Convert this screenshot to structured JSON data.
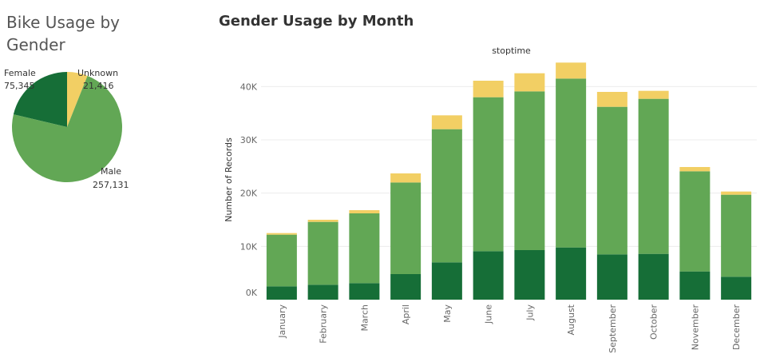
{
  "colors": {
    "female": "#166e37",
    "male": "#62a755",
    "unknown": "#f2cf64",
    "grid": "#ececec",
    "tick_text": "#666666",
    "title_text": "#333333"
  },
  "chart_data": [
    {
      "type": "pie",
      "title": "Bike Usage by Gender",
      "slices": [
        {
          "name": "Female",
          "value": 75345,
          "label": "75,345"
        },
        {
          "name": "Unknown",
          "value": 21416,
          "label": "21,416"
        },
        {
          "name": "Male",
          "value": 257131,
          "label": "257,131"
        }
      ]
    },
    {
      "type": "bar",
      "stacked": true,
      "title": "Gender Usage by Month",
      "column_header": "stoptime",
      "ylabel": "Number of Records",
      "xlabel": "",
      "ylim": [
        0,
        45000
      ],
      "yticks": [
        0,
        10000,
        20000,
        30000,
        40000
      ],
      "ytick_labels": [
        "0K",
        "10K",
        "20K",
        "30K",
        "40K"
      ],
      "grid": true,
      "categories": [
        "January",
        "February",
        "March",
        "April",
        "May",
        "June",
        "July",
        "August",
        "September",
        "October",
        "November",
        "December"
      ],
      "series": [
        {
          "key": "female",
          "values": [
            2500,
            2800,
            3100,
            4800,
            7000,
            9100,
            9300,
            9800,
            8500,
            8600,
            5300,
            4300
          ]
        },
        {
          "key": "male",
          "values": [
            9700,
            11800,
            13100,
            17200,
            25000,
            28900,
            29800,
            31700,
            27700,
            29100,
            18800,
            15400
          ]
        },
        {
          "key": "unknown",
          "values": [
            300,
            400,
            600,
            1700,
            2600,
            3100,
            3400,
            3000,
            2800,
            1500,
            800,
            600
          ]
        }
      ]
    }
  ]
}
